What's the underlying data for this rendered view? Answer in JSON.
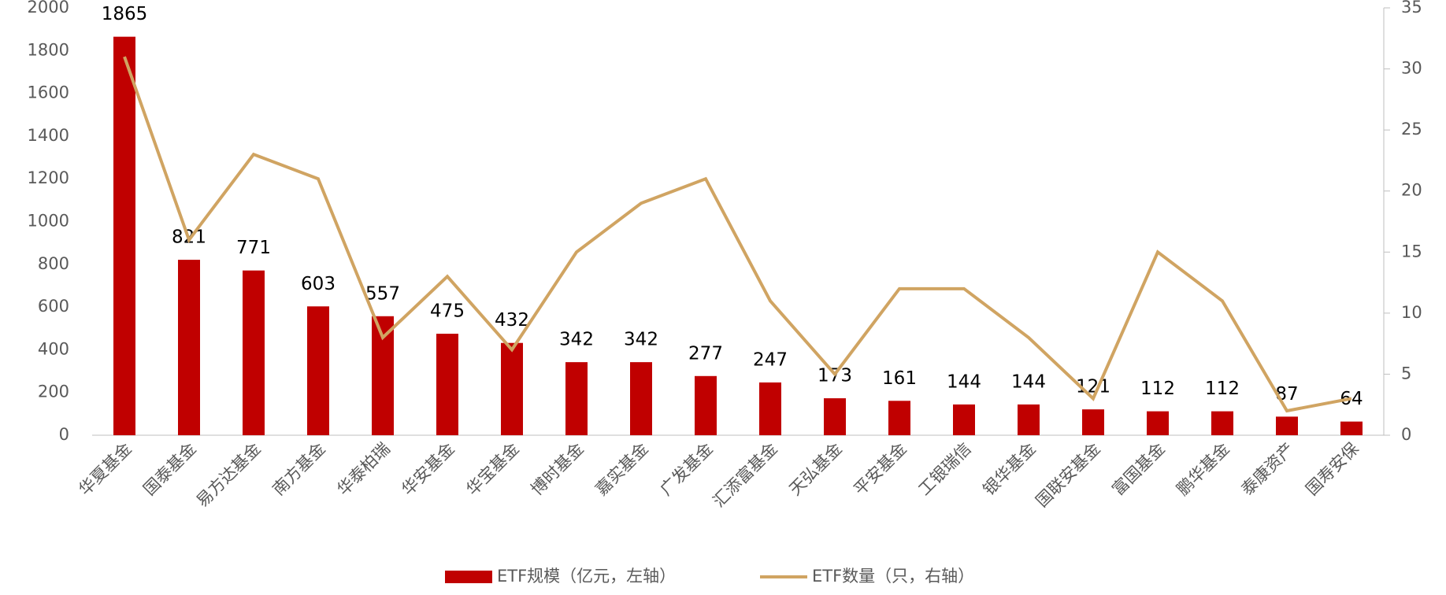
{
  "chart_data": {
    "type": "bar",
    "categories": [
      "华夏基金",
      "国泰基金",
      "易方达基金",
      "南方基金",
      "华泰柏瑞",
      "华安基金",
      "华宝基金",
      "博时基金",
      "嘉实基金",
      "广发基金",
      "汇添富基金",
      "天弘基金",
      "平安基金",
      "工银瑞信",
      "银华基金",
      "国联安基金",
      "富国基金",
      "鹏华基金",
      "泰康资产",
      "国寿安保"
    ],
    "series": [
      {
        "name": "ETF规模（亿元，左轴）",
        "color": "#c00000",
        "type": "bar",
        "axis": "y",
        "values": [
          1865,
          821,
          771,
          603,
          557,
          475,
          432,
          342,
          342,
          277,
          247,
          173,
          161,
          144,
          144,
          121,
          112,
          112,
          87,
          64
        ]
      },
      {
        "name": "ETF数量（只，右轴）",
        "color": "#d0a462",
        "type": "line",
        "axis": "y2",
        "values": [
          31,
          16,
          23,
          21,
          8,
          13,
          7,
          15,
          19,
          21,
          11,
          5,
          12,
          12,
          8,
          3,
          15,
          11,
          2,
          3
        ]
      }
    ],
    "ylim": [
      0,
      2000
    ],
    "yticks": [
      0,
      200,
      400,
      600,
      800,
      1000,
      1200,
      1400,
      1600,
      1800,
      2000
    ],
    "y2lim": [
      0,
      35
    ],
    "y2ticks": [
      0,
      5,
      10,
      15,
      20,
      25,
      30,
      35
    ],
    "legend": "bottom"
  }
}
